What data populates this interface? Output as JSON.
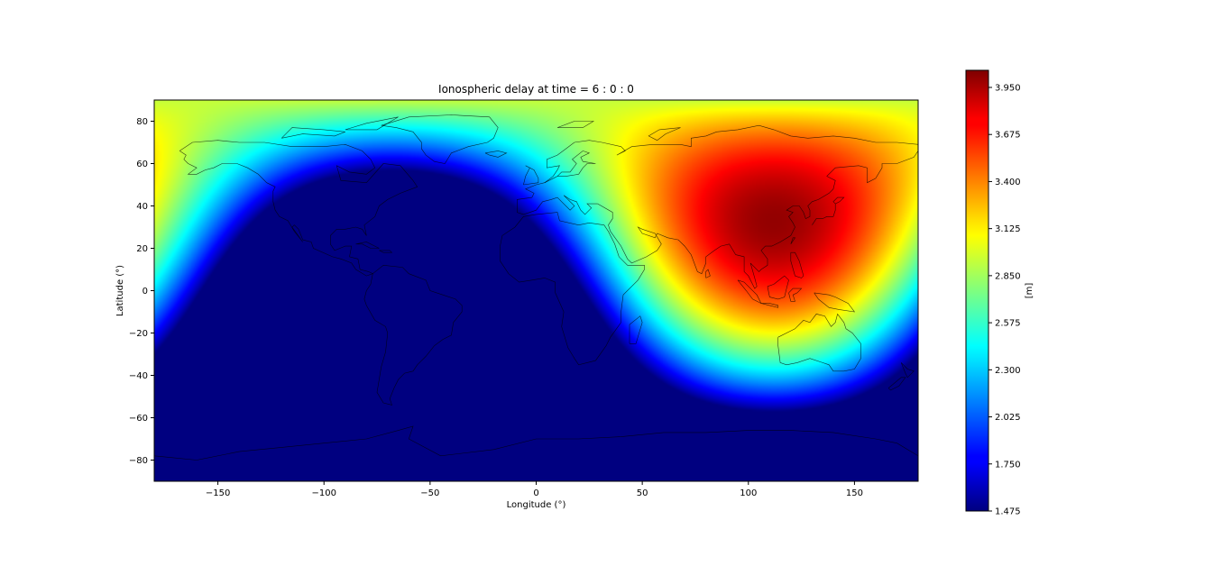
{
  "chart_data": {
    "type": "heatmap",
    "title": "Ionospheric delay at time = 6 : 0 : 0",
    "xlabel": "Longitude (°)",
    "ylabel": "Latitude (°)",
    "xlim": [
      -180,
      180
    ],
    "ylim": [
      -90,
      90
    ],
    "x_ticks": [
      -150,
      -100,
      -50,
      0,
      50,
      100,
      150
    ],
    "x_tick_labels": [
      "−150",
      "−100",
      "−50",
      "0",
      "50",
      "100",
      "150"
    ],
    "y_ticks": [
      80,
      60,
      40,
      20,
      0,
      -20,
      -40,
      -60,
      -80
    ],
    "y_tick_labels": [
      "80",
      "60",
      "40",
      "20",
      "0",
      "−20",
      "−40",
      "−60",
      "−80"
    ],
    "colormap": "jet",
    "value_range": [
      1.475,
      4.05
    ],
    "colorbar": {
      "label": "[m]",
      "ticks": [
        3.95,
        3.675,
        3.4,
        3.125,
        2.85,
        2.575,
        2.3,
        2.025,
        1.75,
        1.475
      ],
      "tick_labels": [
        "3.950",
        "3.675",
        "3.400",
        "3.125",
        "2.850",
        "2.575",
        "2.300",
        "2.025",
        "1.750",
        "1.475"
      ]
    },
    "field": {
      "peak_location": {
        "lon": 112,
        "lat": 33
      },
      "peak_value": 4.0,
      "background_value": 1.475
    },
    "grid": false,
    "overlay": "coastlines"
  }
}
